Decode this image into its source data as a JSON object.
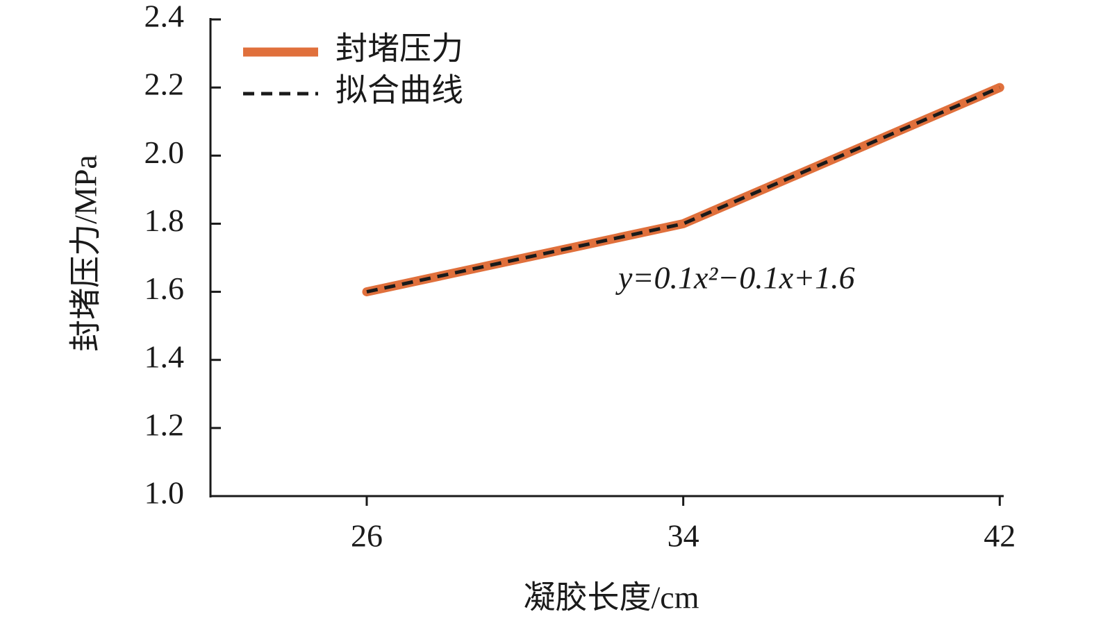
{
  "chart_data": {
    "type": "line",
    "x_label": "凝胶长度/cm",
    "y_label": "封堵压力/MPa",
    "x": [
      26,
      34,
      42
    ],
    "series": [
      {
        "name": "封堵压力",
        "color": "#e0703c",
        "values": [
          1.6,
          1.8,
          2.2
        ]
      },
      {
        "name": "拟合曲线",
        "color": "#1a1a1a",
        "dashed": true,
        "values": [
          1.6,
          1.8,
          2.2
        ]
      }
    ],
    "annotation": "y=0.1x²−0.1x+1.6",
    "xlim": [
      22.05,
      42.1
    ],
    "xticks": [
      26,
      34,
      42
    ],
    "ylim": [
      1.0,
      2.4
    ],
    "yticks": [
      {
        "value": 1.0,
        "label": "1.0"
      },
      1.2,
      1.4,
      1.6,
      1.8,
      {
        "value": 2.0,
        "label": "2.0"
      },
      2.2,
      2.4
    ],
    "legend": "upper left"
  }
}
